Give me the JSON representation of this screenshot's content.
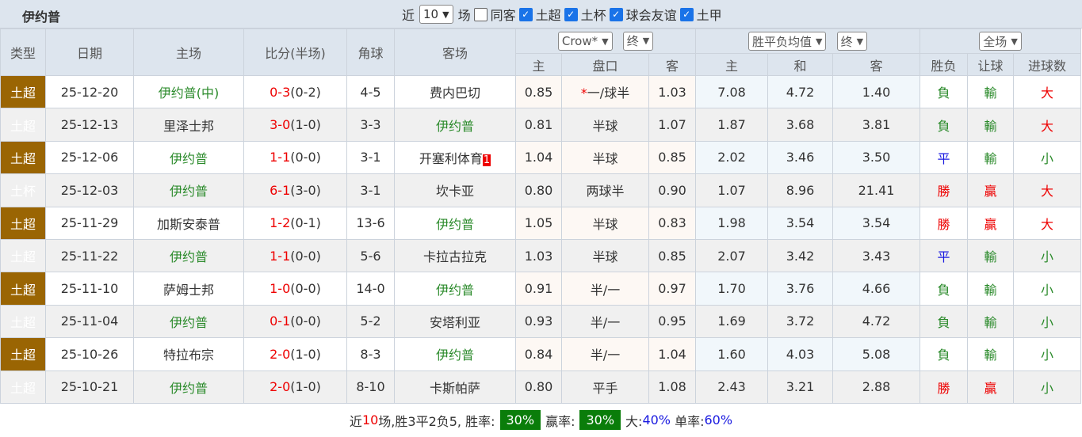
{
  "header": {
    "title": "伊约普",
    "recent_prefix": "近",
    "recent_count": "10",
    "recent_suffix": "场",
    "same_host": "同客",
    "filters": [
      "土超",
      "土杯",
      "球会友谊",
      "土甲"
    ]
  },
  "columns": {
    "type": "类型",
    "date": "日期",
    "home": "主场",
    "score": "比分(半场)",
    "corner": "角球",
    "away": "客场",
    "company": "Crow*",
    "stage1": "终",
    "avg": "胜平负均值",
    "stage2": "终",
    "scope": "全场",
    "sub": [
      "主",
      "盘口",
      "客",
      "主",
      "和",
      "客",
      "胜负",
      "让球",
      "进球数"
    ]
  },
  "rows": [
    {
      "league": "土超",
      "date": "25-12-20",
      "home": "伊约普(中)",
      "home_hl": true,
      "score": "0-3",
      "half": "(0-2)",
      "corner": "4-5",
      "away": "费内巴切",
      "away_hl": false,
      "oh": "0.85",
      "line_star": "*",
      "line": "一/球半",
      "oa": "1.03",
      "h": "7.08",
      "d": "4.72",
      "a": "1.40",
      "res": "負",
      "hc": "輸",
      "ou": "大"
    },
    {
      "league": "土超",
      "date": "25-12-13",
      "home": "里泽士邦",
      "home_hl": false,
      "score": "3-0",
      "half": "(1-0)",
      "corner": "3-3",
      "away": "伊约普",
      "away_hl": true,
      "oh": "0.81",
      "line": "半球",
      "oa": "1.07",
      "h": "1.87",
      "d": "3.68",
      "a": "3.81",
      "res": "負",
      "hc": "輸",
      "ou": "大"
    },
    {
      "league": "土超",
      "date": "25-12-06",
      "home": "伊约普",
      "home_hl": true,
      "score": "1-1",
      "half": "(0-0)",
      "corner": "3-1",
      "away": "开塞利体育",
      "away_badge": "1",
      "away_hl": false,
      "oh": "1.04",
      "line": "半球",
      "oa": "0.85",
      "h": "2.02",
      "d": "3.46",
      "a": "3.50",
      "res": "平",
      "hc": "輸",
      "ou": "小"
    },
    {
      "league": "土杯",
      "date": "25-12-03",
      "home": "伊约普",
      "home_hl": true,
      "score": "6-1",
      "half": "(3-0)",
      "corner": "3-1",
      "away": "坎卡亚",
      "away_hl": false,
      "oh": "0.80",
      "line": "两球半",
      "oa": "0.90",
      "h": "1.07",
      "d": "8.96",
      "a": "21.41",
      "res": "勝",
      "hc": "贏",
      "ou": "大"
    },
    {
      "league": "土超",
      "date": "25-11-29",
      "home": "加斯安泰普",
      "home_hl": false,
      "score": "1-2",
      "half": "(0-1)",
      "corner": "13-6",
      "away": "伊约普",
      "away_hl": true,
      "oh": "1.05",
      "line": "半球",
      "oa": "0.83",
      "h": "1.98",
      "d": "3.54",
      "a": "3.54",
      "res": "勝",
      "hc": "贏",
      "ou": "大"
    },
    {
      "league": "土超",
      "date": "25-11-22",
      "home": "伊约普",
      "home_hl": true,
      "score": "1-1",
      "half": "(0-0)",
      "corner": "5-6",
      "away": "卡拉古拉克",
      "away_hl": false,
      "oh": "1.03",
      "line": "半球",
      "oa": "0.85",
      "h": "2.07",
      "d": "3.42",
      "a": "3.43",
      "res": "平",
      "hc": "輸",
      "ou": "小"
    },
    {
      "league": "土超",
      "date": "25-11-10",
      "home": "萨姆士邦",
      "home_hl": false,
      "score": "1-0",
      "half": "(0-0)",
      "corner": "14-0",
      "away": "伊约普",
      "away_hl": true,
      "oh": "0.91",
      "line": "半/一",
      "oa": "0.97",
      "h": "1.70",
      "d": "3.76",
      "a": "4.66",
      "res": "負",
      "hc": "輸",
      "ou": "小"
    },
    {
      "league": "土超",
      "date": "25-11-04",
      "home": "伊约普",
      "home_hl": true,
      "score": "0-1",
      "half": "(0-0)",
      "corner": "5-2",
      "away": "安塔利亚",
      "away_hl": false,
      "oh": "0.93",
      "line": "半/一",
      "oa": "0.95",
      "h": "1.69",
      "d": "3.72",
      "a": "4.72",
      "res": "負",
      "hc": "輸",
      "ou": "小"
    },
    {
      "league": "土超",
      "date": "25-10-26",
      "home": "特拉布宗",
      "home_hl": false,
      "score": "2-0",
      "half": "(1-0)",
      "corner": "8-3",
      "away": "伊约普",
      "away_hl": true,
      "oh": "0.84",
      "line": "半/一",
      "oa": "1.04",
      "h": "1.60",
      "d": "4.03",
      "a": "5.08",
      "res": "負",
      "hc": "輸",
      "ou": "小"
    },
    {
      "league": "土超",
      "date": "25-10-21",
      "home": "伊约普",
      "home_hl": true,
      "score": "2-0",
      "half": "(1-0)",
      "corner": "8-10",
      "away": "卡斯帕萨",
      "away_hl": false,
      "oh": "0.80",
      "line": "平手",
      "oa": "1.08",
      "h": "2.43",
      "d": "3.21",
      "a": "2.88",
      "res": "勝",
      "hc": "贏",
      "ou": "小"
    }
  ],
  "footer": {
    "p1": "近",
    "count": "10",
    "p2": "场,胜3平2负5, 胜率:",
    "win_rate": "30%",
    "p3": "赢率:",
    "cover_rate": "30%",
    "p4": "大:",
    "over_rate": "40%",
    "p5": "单率:",
    "odd_rate": "60%"
  }
}
